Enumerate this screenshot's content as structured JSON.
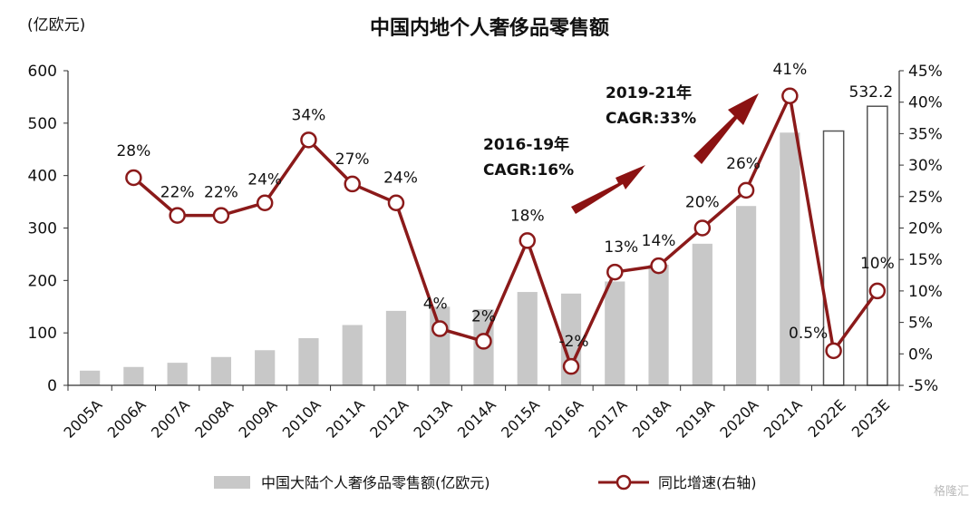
{
  "chart_data": {
    "type": "bar",
    "title": "中国内地个人奢侈品零售额",
    "unit_label": "(亿欧元)",
    "categories": [
      "2005A",
      "2006A",
      "2007A",
      "2008A",
      "2009A",
      "2010A",
      "2011A",
      "2012A",
      "2013A",
      "2014A",
      "2015A",
      "2016A",
      "2017A",
      "2018A",
      "2019A",
      "2020A",
      "2021A",
      "2022E",
      "2023E"
    ],
    "y_left": {
      "ylim": [
        0,
        600
      ],
      "ticks": [
        "0",
        "100",
        "200",
        "300",
        "400",
        "500",
        "600"
      ]
    },
    "y_right": {
      "ylim": [
        -5,
        45
      ],
      "ticks": [
        "-5%",
        "0%",
        "5%",
        "10%",
        "15%",
        "20%",
        "25%",
        "30%",
        "35%",
        "40%",
        "45%"
      ]
    },
    "series": [
      {
        "name": "中国大陆个人奢侈品零售额(亿欧元)",
        "kind": "bar",
        "axis": "left",
        "color": "#c8c8c8",
        "estimate_style": "outline",
        "values": [
          28,
          35,
          43,
          54,
          67,
          90,
          115,
          142,
          150,
          145,
          178,
          175,
          198,
          230,
          270,
          342,
          482,
          485,
          532.2
        ],
        "estimate_flags": [
          false,
          false,
          false,
          false,
          false,
          false,
          false,
          false,
          false,
          false,
          false,
          false,
          false,
          false,
          false,
          false,
          false,
          true,
          true
        ]
      },
      {
        "name": "同比增速(右轴)",
        "kind": "line",
        "axis": "right",
        "color": "#8b1a1a",
        "values": [
          null,
          28,
          22,
          22,
          24,
          34,
          27,
          24,
          4,
          2,
          18,
          -2,
          13,
          14,
          20,
          26,
          41,
          0.5,
          10
        ]
      }
    ],
    "bar_data_labels": [
      {
        "index": 18,
        "text": "532.2"
      }
    ],
    "line_data_labels": [
      {
        "index": 1,
        "text": "28%"
      },
      {
        "index": 2,
        "text": "22%"
      },
      {
        "index": 3,
        "text": "22%"
      },
      {
        "index": 4,
        "text": "24%"
      },
      {
        "index": 5,
        "text": "34%"
      },
      {
        "index": 6,
        "text": "27%"
      },
      {
        "index": 7,
        "text": "24%"
      },
      {
        "index": 8,
        "text": "4%"
      },
      {
        "index": 9,
        "text": "2%"
      },
      {
        "index": 10,
        "text": "18%"
      },
      {
        "index": 11,
        "text": "-2%"
      },
      {
        "index": 12,
        "text": "13%"
      },
      {
        "index": 13,
        "text": "14%"
      },
      {
        "index": 14,
        "text": "20%"
      },
      {
        "index": 15,
        "text": "26%"
      },
      {
        "index": 16,
        "text": "41%"
      },
      {
        "index": 17,
        "text": "0.5%"
      },
      {
        "index": 18,
        "text": "10%"
      }
    ],
    "annotations": [
      {
        "line1": "2016-19年",
        "line2": "CAGR:16%"
      },
      {
        "line1": "2019-21年",
        "line2": "CAGR:33%"
      }
    ],
    "legend_placement": "bottom",
    "grid": false
  },
  "watermark": "格隆汇"
}
